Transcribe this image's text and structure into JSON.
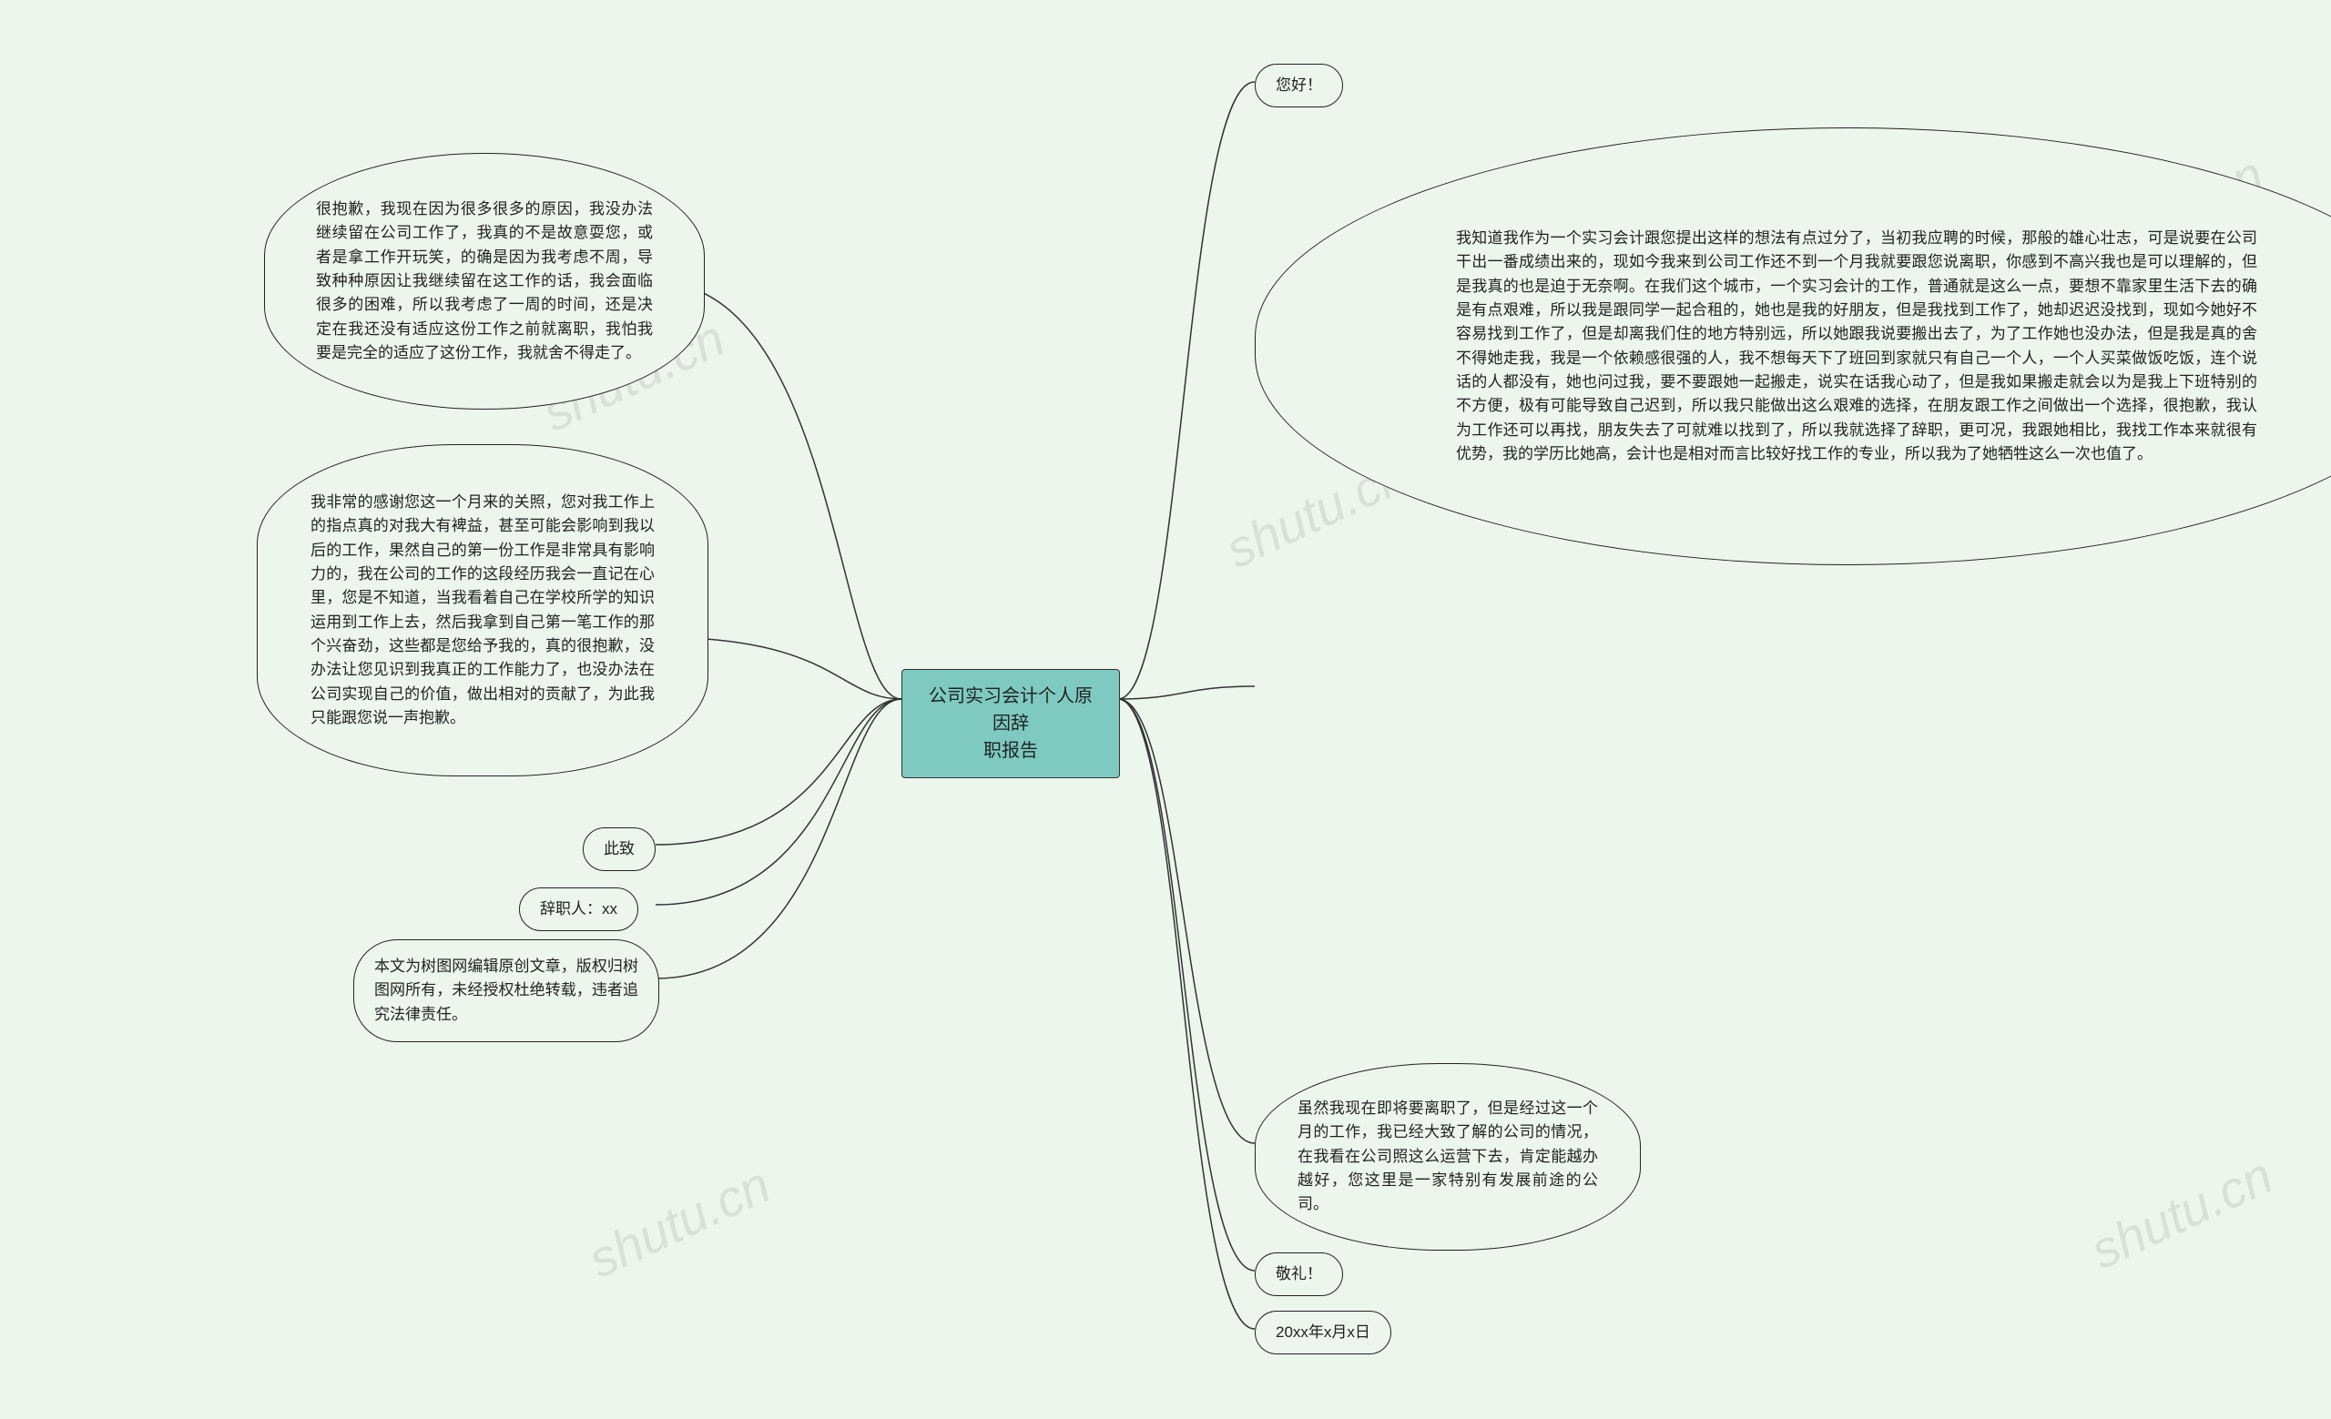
{
  "background_color": "#ecf6ec",
  "watermark_text": "shutu.cn",
  "watermark_color": "#b8b8b8",
  "central": {
    "title": "公司实习会计个人原因辞\n职报告",
    "bg": "#7ecac0",
    "border": "#333333",
    "fontsize": 20
  },
  "left_nodes": {
    "apology": "很抱歉，我现在因为很多很多的原因，我没办法继续留在公司工作了，我真的不是故意耍您，或者是拿工作开玩笑，的确是因为我考虑不周，导致种种原因让我继续留在这工作的话，我会面临很多的困难，所以我考虑了一周的时间，还是决定在我还没有适应这份工作之前就离职，我怕我要是完全的适应了这份工作，我就舍不得走了。",
    "gratitude": "我非常的感谢您这一个月来的关照，您对我工作上的指点真的对我大有裨益，甚至可能会影响到我以后的工作，果然自己的第一份工作是非常具有影响力的，我在公司的工作的这段经历我会一直记在心里，您是不知道，当我看着自己在学校所学的知识运用到工作上去，然后我拿到自己第一笔工作的那个兴奋劲，这些都是您给予我的，真的很抱歉，没办法让您见识到我真正的工作能力了，也没办法在公司实现自己的价值，做出相对的贡献了，为此我只能跟您说一声抱歉。",
    "cizhi": "此致",
    "person": "辞职人：xx",
    "copyright": "本文为树图网编辑原创文章，版权归树图网所有，未经授权杜绝转载，违者追究法律责任。"
  },
  "right_nodes": {
    "greeting": "您好！",
    "main_text": "我知道我作为一个实习会计跟您提出这样的想法有点过分了，当初我应聘的时候，那般的雄心壮志，可是说要在公司干出一番成绩出来的，现如今我来到公司工作还不到一个月我就要跟您说离职，你感到不高兴我也是可以理解的，但是我真的也是迫于无奈啊。在我们这个城市，一个实习会计的工作，普通就是这么一点，要想不靠家里生活下去的确是有点艰难，所以我是跟同学一起合租的，她也是我的好朋友，但是我找到工作了，她却迟迟没找到，现如今她好不容易找到工作了，但是却离我们住的地方特别远，所以她跟我说要搬出去了，为了工作她也没办法，但是我是真的舍不得她走我，我是一个依赖感很强的人，我不想每天下了班回到家就只有自己一个人，一个人买菜做饭吃饭，连个说话的人都没有，她也问过我，要不要跟她一起搬走，说实在话我心动了，但是我如果搬走就会以为是我上下班特别的不方便，极有可能导致自己迟到，所以我只能做出这么艰难的选择，在朋友跟工作之间做出一个选择，很抱歉，我认为工作还可以再找，朋友失去了可就难以找到了，所以我就选择了辞职，更可况，我跟她相比，我找工作本来就很有优势，我的学历比她高，会计也是相对而言比较好找工作的专业，所以我为了她牺牲这么一次也值了。",
    "company_wish": "虽然我现在即将要离职了，但是经过这一个月的工作，我已经大致了解的公司的情况，在我看在公司照这么运营下去，肯定能越办越好，您这里是一家特别有发展前途的公司。",
    "jingli": "敬礼！",
    "date": "20xx年x月x日"
  },
  "style": {
    "node_border": "#222222",
    "node_bg": "#ecf6ec",
    "connector_color": "#333333",
    "connector_width": 1.5,
    "font_family": "Microsoft YaHei",
    "body_fontsize": 17,
    "bubble_padding": 18
  }
}
